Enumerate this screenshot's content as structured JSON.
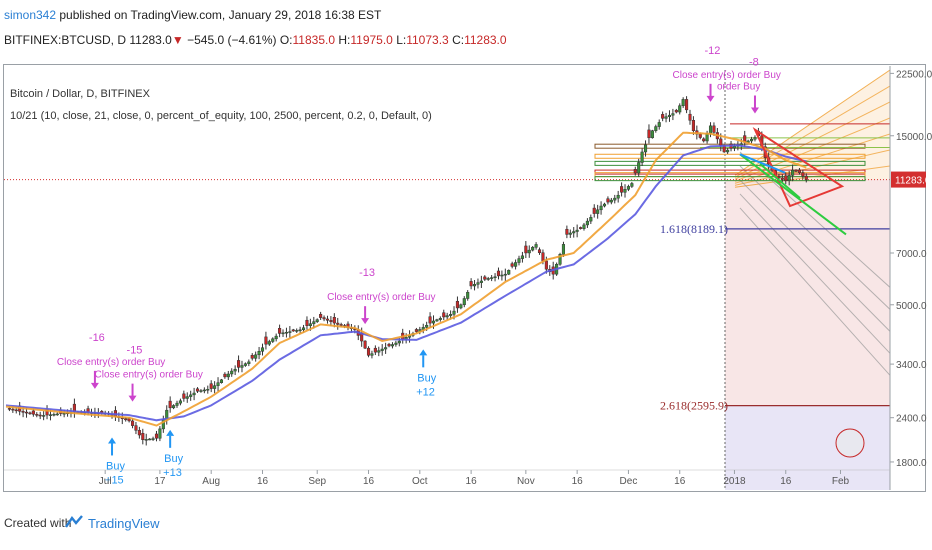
{
  "header": {
    "user": "simon342",
    "published_text": " published on TradingView.com, January 29, 2018 16:38 EST",
    "symbol": "BITFINEX:BTCUSD, D",
    "price": "11283.0",
    "change": "−545.0 (−4.61%)",
    "o_label": "O:",
    "o_value": "11835.0",
    "h_label": "H:",
    "h_value": "11975.0",
    "l_label": "L:",
    "l_value": "11073.3",
    "c_label": "C:",
    "c_value": "11283.0"
  },
  "overlay": {
    "series_title": "Bitcoin / Dollar, D, BITFINEX",
    "strategy_params": "10/21 (10, close, 21, close, 0, percent_of_equity, 100, 2500, percent, 0.2, 0, Default, 0)"
  },
  "footer": {
    "created_with": "Created with",
    "brand": "TradingView"
  },
  "colors": {
    "up": "#3b8f3b",
    "down": "#c62828",
    "ema_fast": "#f0a030",
    "ema_slow": "#5b5be0",
    "signal": "#cc44cc",
    "buy": "#2196f3"
  },
  "chart_data": {
    "type": "candlestick",
    "y_scale": "log",
    "ylim": [
      1500,
      23000
    ],
    "price_ticks": [
      "22500.0",
      "15000.0",
      "11283.0",
      "7000.0",
      "5000.0",
      "3400.0",
      "2400.0",
      "1800.0"
    ],
    "price_tick_values": [
      22500,
      15000,
      11283,
      7000,
      5000,
      3400,
      2400,
      1800
    ],
    "last_price": 11283,
    "time_labels": [
      {
        "label": "Jul",
        "day": 29
      },
      {
        "label": "17",
        "day": 45
      },
      {
        "label": "Aug",
        "day": 60
      },
      {
        "label": "16",
        "day": 75
      },
      {
        "label": "Sep",
        "day": 91
      },
      {
        "label": "16",
        "day": 106
      },
      {
        "label": "Oct",
        "day": 121
      },
      {
        "label": "16",
        "day": 136
      },
      {
        "label": "Nov",
        "day": 152
      },
      {
        "label": "16",
        "day": 167
      },
      {
        "label": "Dec",
        "day": 182
      },
      {
        "label": "16",
        "day": 197
      },
      {
        "label": "2018",
        "day": 213
      },
      {
        "label": "16",
        "day": 228
      },
      {
        "label": "Feb",
        "day": 244
      }
    ],
    "price_path": [
      [
        0,
        2550
      ],
      [
        10,
        2430
      ],
      [
        20,
        2490
      ],
      [
        29,
        2470
      ],
      [
        36,
        2350
      ],
      [
        40,
        2080
      ],
      [
        44,
        2100
      ],
      [
        47,
        2520
      ],
      [
        52,
        2720
      ],
      [
        56,
        2850
      ],
      [
        60,
        2900
      ],
      [
        66,
        3250
      ],
      [
        71,
        3450
      ],
      [
        76,
        3870
      ],
      [
        80,
        4150
      ],
      [
        86,
        4250
      ],
      [
        92,
        4600
      ],
      [
        97,
        4400
      ],
      [
        102,
        4250
      ],
      [
        104,
        3950
      ],
      [
        106,
        3600
      ],
      [
        110,
        3750
      ],
      [
        114,
        3900
      ],
      [
        120,
        4200
      ],
      [
        125,
        4500
      ],
      [
        130,
        4700
      ],
      [
        133,
        5000
      ],
      [
        136,
        5650
      ],
      [
        140,
        5900
      ],
      [
        146,
        6100
      ],
      [
        150,
        6750
      ],
      [
        155,
        7400
      ],
      [
        158,
        6300
      ],
      [
        160,
        6100
      ],
      [
        164,
        7900
      ],
      [
        168,
        8200
      ],
      [
        174,
        9500
      ],
      [
        178,
        10000
      ],
      [
        183,
        11000
      ],
      [
        186,
        13500
      ],
      [
        189,
        15500
      ],
      [
        192,
        16800
      ],
      [
        196,
        17500
      ],
      [
        198,
        19000
      ],
      [
        201,
        15500
      ],
      [
        204,
        14500
      ],
      [
        206,
        16000
      ],
      [
        210,
        13500
      ],
      [
        213,
        14000
      ],
      [
        217,
        14500
      ],
      [
        220,
        15000
      ],
      [
        222,
        13000
      ],
      [
        225,
        11500
      ],
      [
        228,
        11200
      ],
      [
        230,
        12000
      ],
      [
        232,
        11800
      ],
      [
        234,
        11283
      ]
    ],
    "ema_fast_path": [
      [
        0,
        2580
      ],
      [
        20,
        2470
      ],
      [
        36,
        2400
      ],
      [
        44,
        2280
      ],
      [
        52,
        2500
      ],
      [
        60,
        2750
      ],
      [
        72,
        3300
      ],
      [
        80,
        3900
      ],
      [
        92,
        4400
      ],
      [
        102,
        4300
      ],
      [
        110,
        3950
      ],
      [
        120,
        4150
      ],
      [
        133,
        4700
      ],
      [
        146,
        5800
      ],
      [
        158,
        6700
      ],
      [
        166,
        7000
      ],
      [
        176,
        8600
      ],
      [
        184,
        10200
      ],
      [
        190,
        12800
      ],
      [
        198,
        15300
      ],
      [
        206,
        15200
      ],
      [
        214,
        14600
      ],
      [
        222,
        13800
      ],
      [
        228,
        12800
      ],
      [
        234,
        12200
      ]
    ],
    "ema_slow_path": [
      [
        0,
        2600
      ],
      [
        20,
        2500
      ],
      [
        36,
        2440
      ],
      [
        44,
        2360
      ],
      [
        52,
        2420
      ],
      [
        60,
        2600
      ],
      [
        72,
        3050
      ],
      [
        80,
        3500
      ],
      [
        92,
        4100
      ],
      [
        102,
        4200
      ],
      [
        110,
        4000
      ],
      [
        120,
        3980
      ],
      [
        133,
        4450
      ],
      [
        146,
        5300
      ],
      [
        158,
        6200
      ],
      [
        166,
        6500
      ],
      [
        176,
        7700
      ],
      [
        184,
        9000
      ],
      [
        190,
        10800
      ],
      [
        198,
        13200
      ],
      [
        206,
        14000
      ],
      [
        214,
        14100
      ],
      [
        222,
        13700
      ],
      [
        228,
        13100
      ],
      [
        234,
        12700
      ]
    ],
    "fib_levels": [
      {
        "label": "1.618(8189.1)",
        "value": 8189.1
      },
      {
        "label": "2.618(2595.9)",
        "value": 2595.9
      }
    ],
    "signals": [
      {
        "kind": "close",
        "text": "Close entry(s) order Buy",
        "qty": "-16",
        "day": 26
      },
      {
        "kind": "close",
        "text": "Close entry(s) order Buy",
        "qty": "-15",
        "day": 37
      },
      {
        "kind": "close",
        "text": "Close entry(s) order Buy",
        "qty": "-13",
        "day": 105
      },
      {
        "kind": "close",
        "text": "Close entry(s) order Buy",
        "qty": "-12",
        "day": 206
      },
      {
        "kind": "close",
        "text": "order Buy",
        "qty": "-8",
        "day": 219
      },
      {
        "kind": "buy",
        "text": "Buy",
        "qty": "+15",
        "day": 31
      },
      {
        "kind": "buy",
        "text": "Buy",
        "qty": "+13",
        "day": 48
      },
      {
        "kind": "buy",
        "text": "Buy",
        "qty": "+12",
        "day": 122
      }
    ]
  }
}
